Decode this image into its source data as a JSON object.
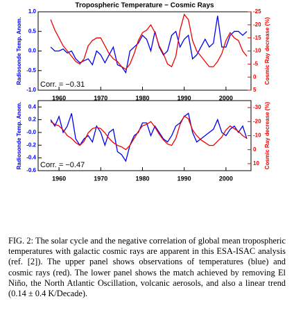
{
  "chart_data": [
    {
      "type": "line",
      "title": "Tropospheric Temperature − Cosmic Rays",
      "ylabel": "Radiosonde Temp. Anom.",
      "y2label": "Cosmic Ray decrease (%)",
      "annotation": "Corr. = −0.31",
      "x": [
        1958,
        1959,
        1960,
        1961,
        1962,
        1963,
        1964,
        1965,
        1966,
        1967,
        1968,
        1969,
        1970,
        1971,
        1972,
        1973,
        1974,
        1975,
        1976,
        1977,
        1978,
        1979,
        1980,
        1981,
        1982,
        1983,
        1984,
        1985,
        1986,
        1987,
        1988,
        1989,
        1990,
        1991,
        1992,
        1993,
        1994,
        1995,
        1996,
        1997,
        1998,
        1999,
        2000,
        2001,
        2002,
        2003,
        2004,
        2005
      ],
      "xlim": [
        1955,
        2006
      ],
      "xticks": [
        1960,
        1970,
        1980,
        1990,
        2000
      ],
      "ylim": [
        -1.0,
        1.0
      ],
      "yticks": [
        {
          "value": -1.0,
          "label": "-1.0"
        },
        -0.5,
        {
          "value": 0.0,
          "label": "0.0"
        },
        0.5,
        {
          "value": 1.0,
          "label": "1.0"
        }
      ],
      "y2lim": [
        -25,
        5
      ],
      "y2_reversed": true,
      "y2ticks": [
        -25,
        -20,
        -15,
        -10,
        -5,
        0,
        5
      ],
      "series": [
        {
          "color": "#0000ee",
          "values": [
            0.1,
            0.0,
            0.0,
            0.05,
            -0.05,
            0.0,
            -0.2,
            -0.3,
            -0.25,
            -0.2,
            -0.35,
            0.0,
            -0.1,
            -0.3,
            -0.1,
            0.1,
            -0.35,
            -0.4,
            -0.55,
            0.0,
            0.1,
            0.2,
            0.4,
            0.3,
            0.0,
            0.5,
            0.1,
            -0.1,
            0.0,
            0.4,
            0.5,
            0.1,
            0.3,
            0.4,
            -0.2,
            -0.1,
            0.1,
            0.3,
            0.1,
            0.2,
            0.9,
            0.1,
            0.1,
            0.4,
            0.5,
            0.5,
            0.4,
            0.5
          ]
        },
        {
          "color": "#ee0000",
          "axis": "y2",
          "values": [
            -22,
            -18,
            -15,
            -12,
            -10,
            -8,
            -6,
            -5,
            -7,
            -12,
            -14,
            -15,
            -15,
            -12,
            -9,
            -7,
            -6,
            -4,
            -3,
            -5,
            -9,
            -14,
            -17,
            -18,
            -20,
            -17,
            -12,
            -9,
            -5,
            -4,
            -8,
            -18,
            -24,
            -22,
            -14,
            -10,
            -8,
            -6,
            -4,
            -4,
            -6,
            -9,
            -14,
            -17,
            -15,
            -14,
            -10,
            -8
          ]
        }
      ]
    },
    {
      "type": "line",
      "ylabel": "Radiosonde Temp. Anom.",
      "y2label": "Cosmic Ray decrease (%)",
      "annotation": "Corr. = −0.47",
      "x": [
        1958,
        1959,
        1960,
        1961,
        1962,
        1963,
        1964,
        1965,
        1966,
        1967,
        1968,
        1969,
        1970,
        1971,
        1972,
        1973,
        1974,
        1975,
        1976,
        1977,
        1978,
        1979,
        1980,
        1981,
        1982,
        1983,
        1984,
        1985,
        1986,
        1987,
        1988,
        1989,
        1990,
        1991,
        1992,
        1993,
        1994,
        1995,
        1996,
        1997,
        1998,
        1999,
        2000,
        2001,
        2002,
        2003,
        2004,
        2005
      ],
      "xlim": [
        1955,
        2006
      ],
      "xticks": [
        1960,
        1970,
        1980,
        1990,
        2000
      ],
      "ylim": [
        -0.6,
        0.5
      ],
      "yticks": [
        -0.6,
        -0.4,
        -0.2,
        {
          "value": 0.0,
          "label": "-0.0"
        },
        0.2,
        0.4
      ],
      "y2lim": [
        -35,
        15
      ],
      "y2_reversed": true,
      "y2ticks": [
        -30,
        -20,
        -10,
        0,
        10
      ],
      "series": [
        {
          "color": "#0000ee",
          "values": [
            0.2,
            0.1,
            0.25,
            0.0,
            0.1,
            0.3,
            -0.1,
            -0.2,
            -0.1,
            -0.05,
            -0.15,
            0.1,
            0.0,
            -0.2,
            0.0,
            0.05,
            -0.3,
            -0.35,
            -0.45,
            -0.2,
            -0.05,
            0.0,
            0.15,
            0.15,
            -0.05,
            0.1,
            0.0,
            -0.1,
            -0.15,
            -0.05,
            0.1,
            0.15,
            0.25,
            0.3,
            0.0,
            -0.15,
            -0.1,
            -0.05,
            0.0,
            0.05,
            0.2,
            0.0,
            -0.05,
            0.05,
            0.1,
            0.0,
            0.1,
            -0.1
          ]
        },
        {
          "color": "#ee0000",
          "axis": "y2",
          "values": [
            -20,
            -18,
            -17,
            -14,
            -10,
            -8,
            -5,
            -3,
            -6,
            -12,
            -15,
            -16,
            -15,
            -12,
            -8,
            -5,
            -3,
            -2,
            0,
            -3,
            -8,
            -13,
            -17,
            -18,
            -20,
            -16,
            -11,
            -7,
            -4,
            -3,
            -8,
            -18,
            -24,
            -22,
            -14,
            -10,
            -7,
            -5,
            -3,
            -3,
            -6,
            -9,
            -14,
            -17,
            -15,
            -13,
            -10,
            -8
          ]
        }
      ]
    }
  ],
  "caption": "FIG. 2: The solar cycle and the negative correlation of global mean tropospheric temperatures with galactic cosmic rays are apparent in this ESA-ISAC analysis (ref. [2]). The upper panel shows observations of temperatures (blue) and cosmic rays (red). The lower panel shows the match achieved by removing El Niño, the North Atlantic Oscillation, volcanic aerosols, and also a linear trend (0.14 ± 0.4 K/Decade)."
}
